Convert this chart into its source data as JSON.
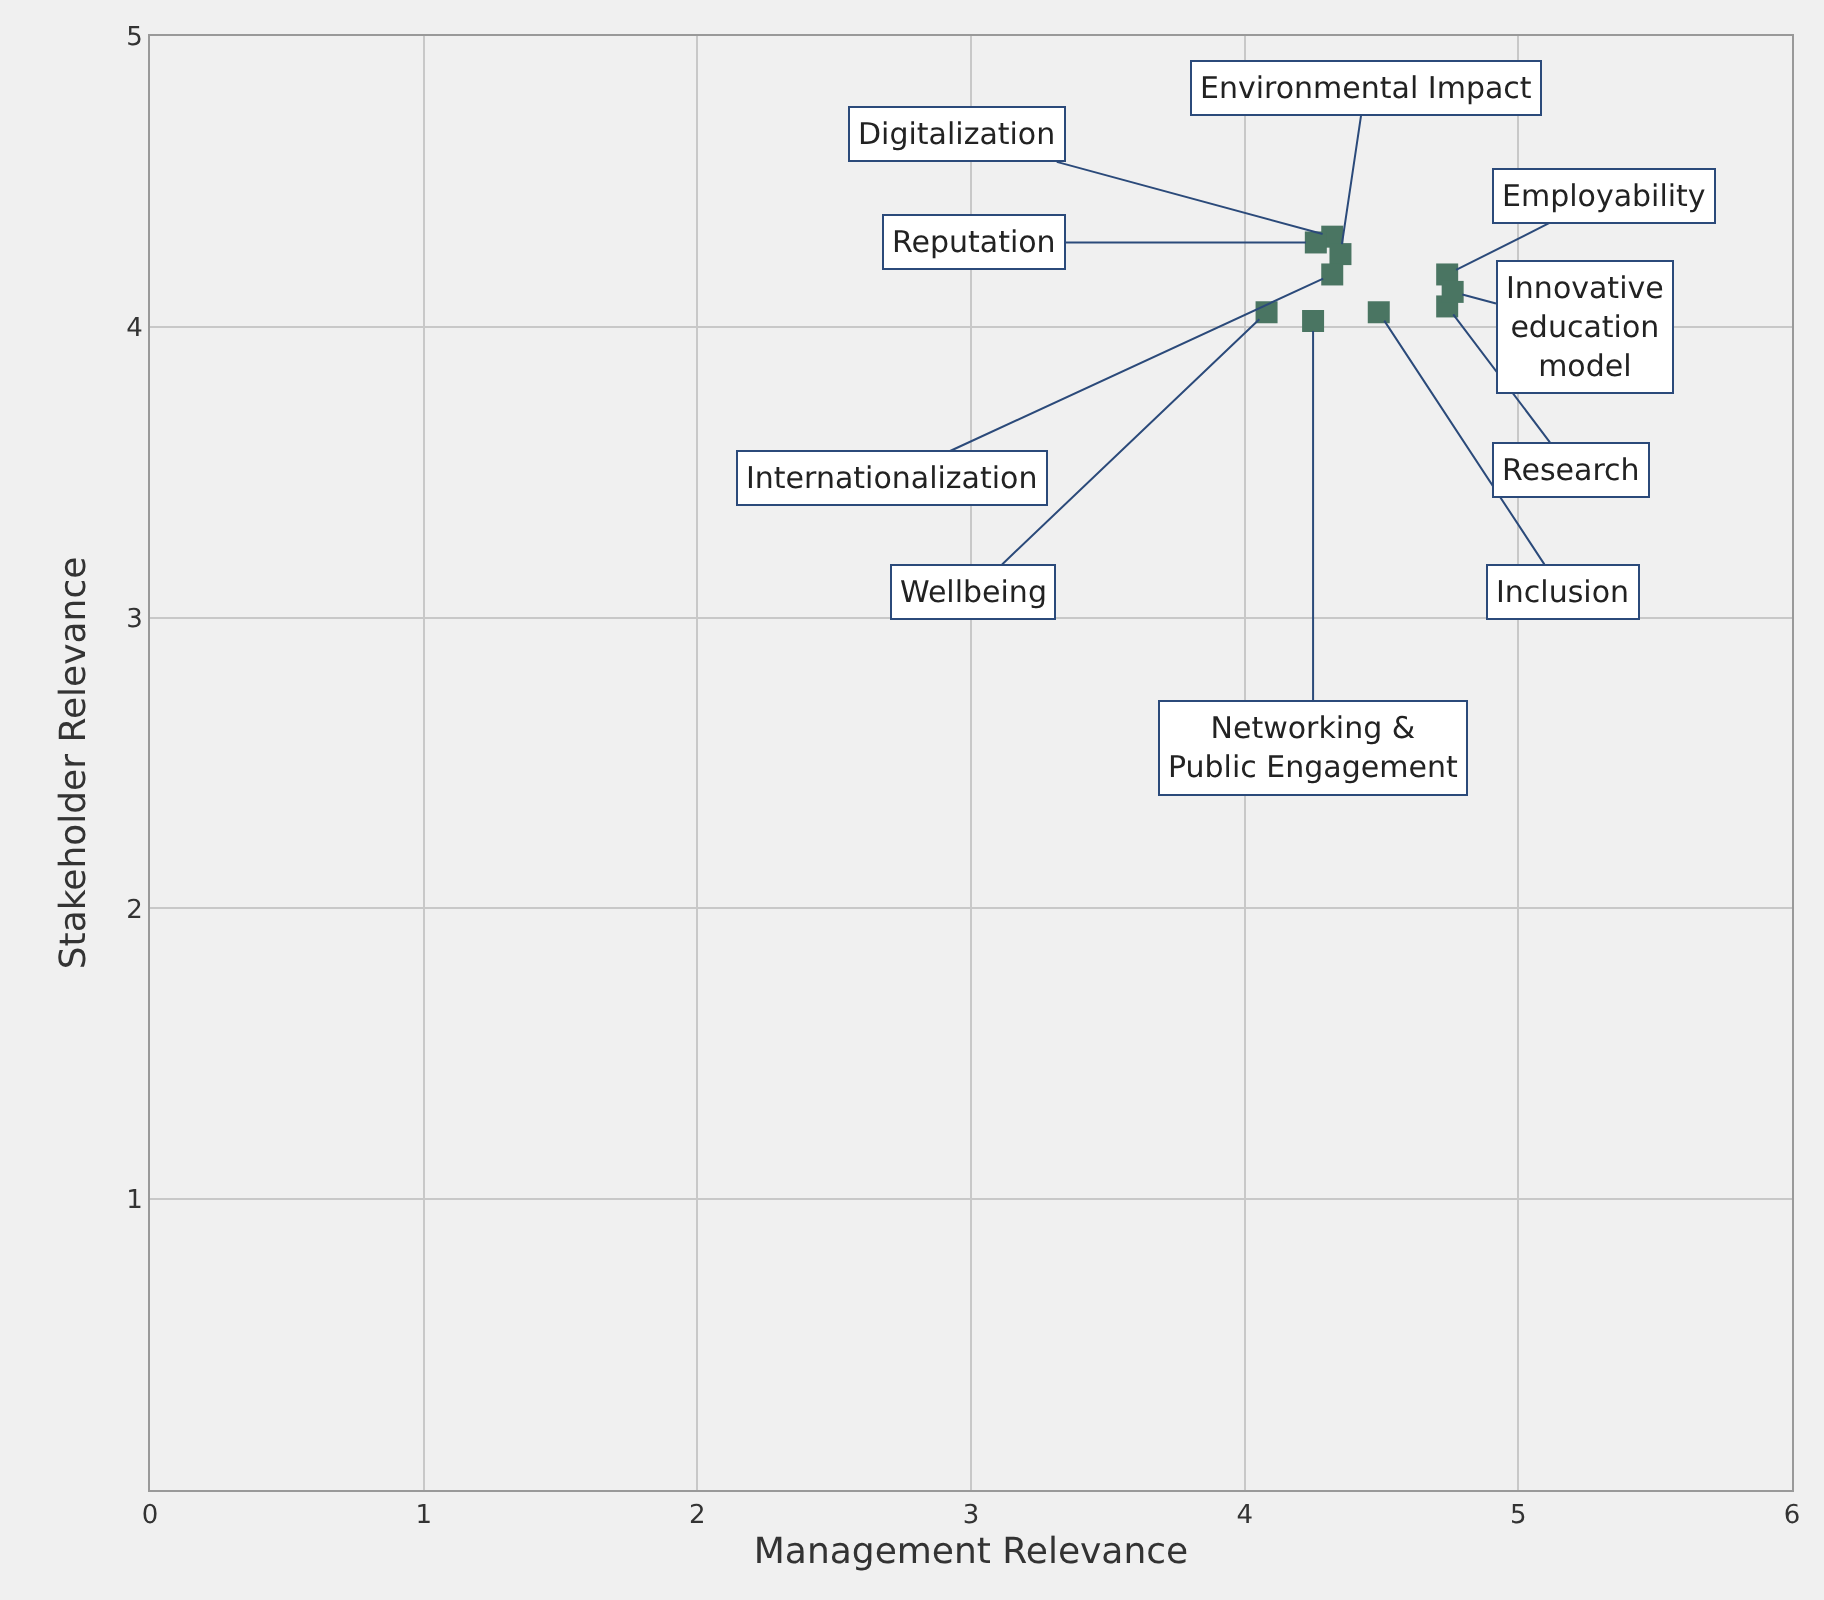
{
  "chart_data": {
    "type": "scatter",
    "xlabel": "Management Relevance",
    "ylabel": "Stakeholder Relevance",
    "xlim": [
      0,
      6
    ],
    "xticks": [
      0,
      1,
      2,
      3,
      4,
      5,
      6
    ],
    "ylim": [
      0,
      5
    ],
    "yticks": [
      1,
      2,
      3,
      4,
      5
    ],
    "grid": true,
    "legend": false,
    "marker": "square",
    "series": [
      {
        "name": "Digitalization",
        "color": "#4a7562",
        "x": [
          4.32
        ],
        "values": [
          4.31
        ]
      },
      {
        "name": "Environmental Impact",
        "color": "#4a7562",
        "x": [
          4.35
        ],
        "values": [
          4.25
        ]
      },
      {
        "name": "Reputation",
        "color": "#4a7562",
        "x": [
          4.26
        ],
        "values": [
          4.29
        ]
      },
      {
        "name": "Internationalization",
        "color": "#4a7562",
        "x": [
          4.32
        ],
        "values": [
          4.18
        ]
      },
      {
        "name": "Wellbeing",
        "color": "#4a7562",
        "x": [
          4.08
        ],
        "values": [
          4.05
        ]
      },
      {
        "name": "Networking & Public Engagement",
        "color": "#4a7562",
        "x": [
          4.25
        ],
        "values": [
          4.02
        ]
      },
      {
        "name": "Inclusion",
        "color": "#4a7562",
        "x": [
          4.49
        ],
        "values": [
          4.05
        ]
      },
      {
        "name": "Research",
        "color": "#4a7562",
        "x": [
          4.74
        ],
        "values": [
          4.07
        ]
      },
      {
        "name": "Employability",
        "color": "#4a7562",
        "x": [
          4.74
        ],
        "values": [
          4.18
        ]
      },
      {
        "name": "Innovative education model",
        "color": "#4a7562",
        "x": [
          4.76
        ],
        "values": [
          4.12
        ]
      }
    ]
  }
}
